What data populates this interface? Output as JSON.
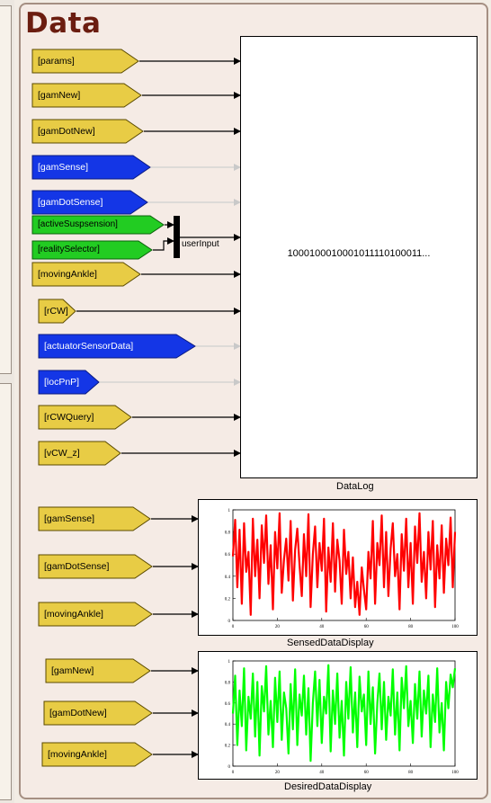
{
  "title": "Data",
  "colors": {
    "gold": "#e8cc45",
    "blue": "#1436e6",
    "green": "#22cc22",
    "title": "#6b1d10"
  },
  "goto_tags": [
    {
      "label": "[params]",
      "color": "gold"
    },
    {
      "label": "[gamNew]",
      "color": "gold"
    },
    {
      "label": "[gamDotNew]",
      "color": "gold"
    },
    {
      "label": "[gamSense]",
      "color": "blue"
    },
    {
      "label": "[gamDotSense]",
      "color": "blue"
    },
    {
      "label": "[activeSuspsension]",
      "color": "green"
    },
    {
      "label": "[realitySelector]",
      "color": "green"
    },
    {
      "label": "[movingAnkle]",
      "color": "gold"
    },
    {
      "label": "[rCW]",
      "color": "gold"
    },
    {
      "label": "[actuatorSensorData]",
      "color": "blue"
    },
    {
      "label": "[locPnP]",
      "color": "blue"
    },
    {
      "label": "[rCWQuery]",
      "color": "gold"
    },
    {
      "label": "[vCW_z]",
      "color": "gold"
    }
  ],
  "mux": {
    "input_label": "userInput"
  },
  "datalog": {
    "label": "DataLog",
    "value": "1000100010001011110100011..."
  },
  "sensed": {
    "inputs": [
      "[gamSense]",
      "[gamDotSense]",
      "[movingAnkle]"
    ],
    "label": "SensedDataDisplay"
  },
  "desired": {
    "inputs": [
      "[gamNew]",
      "[gamDotNew]",
      "[movingAnkle]"
    ],
    "label": "DesiredDataDisplay"
  },
  "chart_data": [
    {
      "type": "line",
      "ylim": [
        0,
        1
      ],
      "xlim": [
        0,
        100
      ],
      "yticks": [
        "1",
        "0.8",
        "0.6",
        "0.4",
        "0.2",
        "0"
      ],
      "xticks": [
        "0",
        "20",
        "40",
        "60",
        "80",
        "100"
      ],
      "series": [
        {
          "color": "#ff0000",
          "values": [
            0.58,
            0.91,
            0.3,
            0.82,
            0.15,
            0.88,
            0.44,
            0.62,
            0.05,
            0.92,
            0.4,
            0.73,
            0.2,
            0.86,
            0.52,
            0.95,
            0.33,
            0.68,
            0.1,
            0.8,
            0.47,
            0.97,
            0.25,
            0.55,
            0.74,
            0.36,
            0.9,
            0.18,
            0.64,
            0.83,
            0.5,
            0.22,
            0.78,
            0.4,
            0.96,
            0.12,
            0.6,
            0.85,
            0.3,
            0.7,
            0.45,
            0.92,
            0.08,
            0.66,
            0.35,
            0.88,
            0.26,
            0.73,
            0.54,
            0.15,
            0.82,
            0.42,
            0.62,
            0.2,
            0.57,
            0.12,
            0.35,
            0.05,
            0.48,
            0.28,
            0.1,
            0.62,
            0.38,
            0.9,
            0.15,
            0.7,
            0.5,
            0.95,
            0.3,
            0.8,
            0.22,
            0.65,
            0.88,
            0.4,
            0.6,
            0.1,
            0.78,
            0.45,
            0.92,
            0.3,
            0.7,
            0.15,
            0.85,
            0.52,
            0.97,
            0.35,
            0.62,
            0.2,
            0.8,
            0.46,
            0.9,
            0.12,
            0.68,
            0.38,
            0.86,
            0.25,
            0.74,
            0.5,
            0.93,
            0.3,
            0.8
          ]
        }
      ]
    },
    {
      "type": "line",
      "ylim": [
        0,
        1
      ],
      "xlim": [
        0,
        100
      ],
      "yticks": [
        "1",
        "0.8",
        "0.6",
        "0.4",
        "0.2",
        "0"
      ],
      "xticks": [
        "0",
        "20",
        "40",
        "60",
        "80",
        "100"
      ],
      "series": [
        {
          "color": "#00ff00",
          "values": [
            0.5,
            0.86,
            0.2,
            0.72,
            0.38,
            0.93,
            0.15,
            0.66,
            0.45,
            0.88,
            0.28,
            0.8,
            0.1,
            0.76,
            0.52,
            0.95,
            0.3,
            0.62,
            0.18,
            0.84,
            0.42,
            0.9,
            0.25,
            0.7,
            0.55,
            0.12,
            0.78,
            0.35,
            0.92,
            0.2,
            0.68,
            0.48,
            0.86,
            0.3,
            0.74,
            0.05,
            0.6,
            0.9,
            0.38,
            0.82,
            0.22,
            0.66,
            0.5,
            0.96,
            0.14,
            0.72,
            0.4,
            0.88,
            0.27,
            0.62,
            0.1,
            0.8,
            0.45,
            0.94,
            0.32,
            0.7,
            0.18,
            0.85,
            0.52,
            0.68,
            0.2,
            0.9,
            0.4,
            0.75,
            0.12,
            0.6,
            0.88,
            0.35,
            0.8,
            0.25,
            0.66,
            0.48,
            0.92,
            0.3,
            0.7,
            0.15,
            0.84,
            0.55,
            0.95,
            0.38,
            0.62,
            0.22,
            0.78,
            0.45,
            0.9,
            0.28,
            0.72,
            0.5,
            0.86,
            0.18,
            0.68,
            0.42,
            0.93,
            0.32,
            0.6,
            0.15,
            0.8,
            0.55,
            0.87,
            0.75,
            0.93
          ]
        }
      ]
    }
  ]
}
